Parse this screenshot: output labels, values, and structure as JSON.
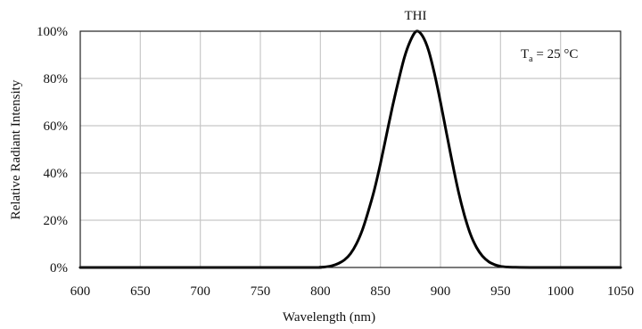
{
  "chart_data": {
    "type": "line",
    "title": "THI",
    "xlabel": "Wavelength (nm)",
    "ylabel": "Relative Radiant Intensity",
    "xlim": [
      600,
      1050
    ],
    "ylim": [
      0,
      100
    ],
    "x_ticks": [
      600,
      650,
      700,
      750,
      800,
      850,
      900,
      950,
      1000,
      1050
    ],
    "x_tick_labels": [
      "600",
      "650",
      "700",
      "750",
      "800",
      "850",
      "900",
      "950",
      "1000",
      "1050"
    ],
    "y_ticks": [
      0,
      20,
      40,
      60,
      80,
      100
    ],
    "y_tick_labels": [
      "0%",
      "20%",
      "40%",
      "60%",
      "80%",
      "100%"
    ],
    "grid": true,
    "annotation": {
      "base": "T",
      "sub": "a",
      "rest": " = 25 °C"
    },
    "series": [
      {
        "color": "#000000",
        "x": [
          600,
          780,
          800,
          805,
          810,
          815,
          820,
          825,
          830,
          835,
          840,
          845,
          850,
          855,
          860,
          865,
          870,
          875,
          880,
          885,
          890,
          895,
          900,
          905,
          910,
          915,
          920,
          925,
          930,
          935,
          940,
          945,
          950,
          955,
          960,
          980,
          1050
        ],
        "y": [
          0,
          0,
          0.1,
          0.3,
          0.8,
          1.7,
          3.2,
          5.8,
          10,
          16,
          24,
          33,
          44,
          56,
          68,
          79,
          89,
          96,
          100,
          98,
          92,
          82,
          70,
          57,
          44,
          32,
          22,
          14,
          8.5,
          4.8,
          2.5,
          1.2,
          0.5,
          0.2,
          0.1,
          0,
          0
        ]
      }
    ]
  }
}
